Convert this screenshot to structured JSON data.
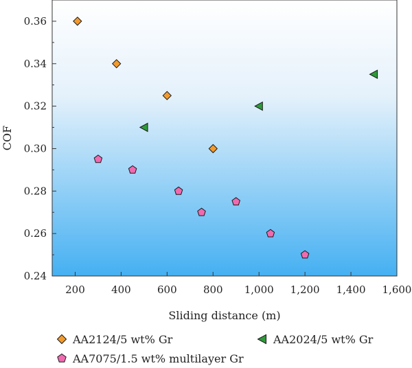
{
  "chart_data": {
    "type": "scatter",
    "xlabel": "Sliding distance (m)",
    "ylabel": "COF",
    "xlim": [
      100,
      1600
    ],
    "ylim": [
      0.24,
      0.37
    ],
    "x_ticks": [
      200,
      400,
      600,
      800,
      1000,
      1200,
      1400,
      1600
    ],
    "x_tick_labels": [
      "200",
      "400",
      "600",
      "800",
      "1,000",
      "1,200",
      "1,400",
      "1,600"
    ],
    "y_ticks": [
      0.24,
      0.26,
      0.28,
      0.3,
      0.32,
      0.34,
      0.36
    ],
    "y_tick_labels": [
      "0.24",
      "0.26",
      "0.28",
      "0.30",
      "0.32",
      "0.34",
      "0.36"
    ],
    "grid": false,
    "background": "vertical gradient white to light blue",
    "legend_position": "bottom",
    "series": [
      {
        "name": "AA2124/5 wt% Gr",
        "marker": "diamond",
        "color": "#F39A2D",
        "points": [
          [
            210,
            0.36
          ],
          [
            380,
            0.34
          ],
          [
            600,
            0.325
          ],
          [
            800,
            0.3
          ]
        ]
      },
      {
        "name": "AA2024/5 wt% Gr",
        "marker": "triangle-left",
        "color": "#2E9B3A",
        "points": [
          [
            500,
            0.31
          ],
          [
            1000,
            0.32
          ],
          [
            1500,
            0.335
          ]
        ]
      },
      {
        "name": "AA7075/1.5 wt% multilayer Gr",
        "marker": "pentagon",
        "color": "#F06AB0",
        "points": [
          [
            300,
            0.295
          ],
          [
            450,
            0.29
          ],
          [
            650,
            0.28
          ],
          [
            750,
            0.27
          ],
          [
            900,
            0.275
          ],
          [
            1050,
            0.26
          ],
          [
            1200,
            0.25
          ]
        ]
      }
    ]
  }
}
